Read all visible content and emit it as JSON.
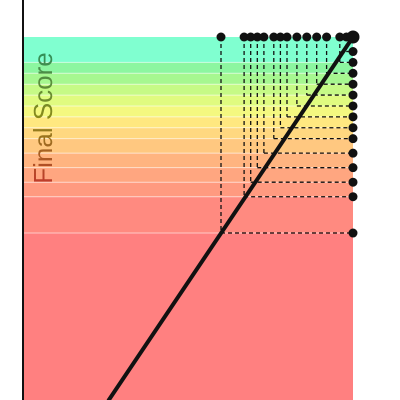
{
  "chart_data": {
    "type": "line",
    "title": "",
    "xlabel": "",
    "ylabel": "Final Score",
    "ylabel_colors": [
      "#c0392b",
      "#8a8a1a",
      "#2f8f5a"
    ],
    "grid": false,
    "legend": "none",
    "xlim": [
      0,
      1
    ],
    "ylim": [
      0,
      1
    ],
    "bands": [
      {
        "from": 0.0,
        "to": 0.46,
        "color": "#ff8080"
      },
      {
        "from": 0.46,
        "to": 0.56,
        "color": "#ff8a80"
      },
      {
        "from": 0.56,
        "to": 0.6,
        "color": "#ff9a80"
      },
      {
        "from": 0.6,
        "to": 0.64,
        "color": "#ffa680"
      },
      {
        "from": 0.64,
        "to": 0.68,
        "color": "#ffb480"
      },
      {
        "from": 0.68,
        "to": 0.72,
        "color": "#ffc880"
      },
      {
        "from": 0.72,
        "to": 0.75,
        "color": "#ffd880"
      },
      {
        "from": 0.75,
        "to": 0.78,
        "color": "#ffe880"
      },
      {
        "from": 0.78,
        "to": 0.81,
        "color": "#f4f880"
      },
      {
        "from": 0.81,
        "to": 0.84,
        "color": "#e0fb80"
      },
      {
        "from": 0.84,
        "to": 0.87,
        "color": "#c6fa86"
      },
      {
        "from": 0.87,
        "to": 0.9,
        "color": "#a6f790"
      },
      {
        "from": 0.9,
        "to": 0.93,
        "color": "#8cf6a0"
      },
      {
        "from": 0.93,
        "to": 1.0,
        "color": "#80ffd0"
      }
    ],
    "line": {
      "x": [
        0.26,
        1.0
      ],
      "y": [
        0.0,
        1.0
      ],
      "color": "#111111"
    },
    "thresholds": [
      {
        "x": 0.6,
        "y": 0.46
      },
      {
        "x": 0.67,
        "y": 0.56
      },
      {
        "x": 0.69,
        "y": 0.6
      },
      {
        "x": 0.71,
        "y": 0.64
      },
      {
        "x": 0.73,
        "y": 0.68
      },
      {
        "x": 0.76,
        "y": 0.72
      },
      {
        "x": 0.78,
        "y": 0.75
      },
      {
        "x": 0.8,
        "y": 0.78
      },
      {
        "x": 0.83,
        "y": 0.81
      },
      {
        "x": 0.86,
        "y": 0.84
      },
      {
        "x": 0.89,
        "y": 0.87
      },
      {
        "x": 0.92,
        "y": 0.9
      },
      {
        "x": 0.96,
        "y": 0.93
      },
      {
        "x": 0.98,
        "y": 0.96
      }
    ]
  }
}
